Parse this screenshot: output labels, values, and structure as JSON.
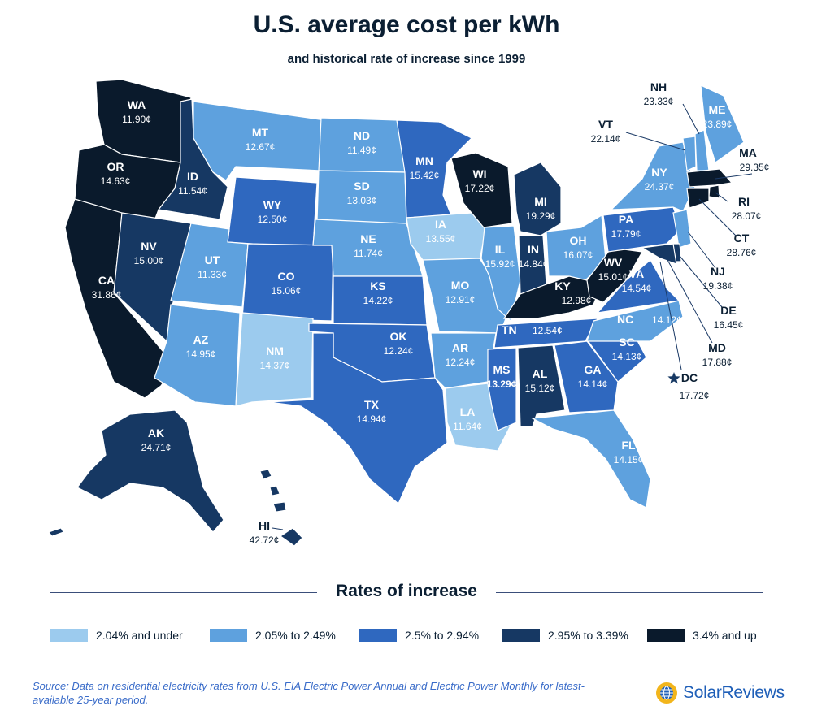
{
  "title": "U.S. average cost per kWh",
  "subtitle": "and historical rate of increase since 1999",
  "colors": {
    "c1": "#9ccbee",
    "c2": "#5ea1de",
    "c3": "#2f68bf",
    "c4": "#163863",
    "c5": "#0a1a2c",
    "text_dark": "#0b1f33"
  },
  "states": [
    {
      "abbr": "WA",
      "value": "11.90¢",
      "cls": 5
    },
    {
      "abbr": "OR",
      "value": "14.63¢",
      "cls": 5
    },
    {
      "abbr": "CA",
      "value": "31.86¢",
      "cls": 5
    },
    {
      "abbr": "ID",
      "value": "11.54¢",
      "cls": 4
    },
    {
      "abbr": "NV",
      "value": "15.00¢",
      "cls": 4
    },
    {
      "abbr": "MT",
      "value": "12.67¢",
      "cls": 2
    },
    {
      "abbr": "WY",
      "value": "12.50¢",
      "cls": 3
    },
    {
      "abbr": "UT",
      "value": "11.33¢",
      "cls": 2
    },
    {
      "abbr": "AZ",
      "value": "14.95¢",
      "cls": 2
    },
    {
      "abbr": "CO",
      "value": "15.06¢",
      "cls": 3
    },
    {
      "abbr": "NM",
      "value": "14.37¢",
      "cls": 1
    },
    {
      "abbr": "ND",
      "value": "11.49¢",
      "cls": 2
    },
    {
      "abbr": "SD",
      "value": "13.03¢",
      "cls": 2
    },
    {
      "abbr": "NE",
      "value": "11.74¢",
      "cls": 2
    },
    {
      "abbr": "KS",
      "value": "14.22¢",
      "cls": 3
    },
    {
      "abbr": "OK",
      "value": "12.24¢",
      "cls": 3
    },
    {
      "abbr": "TX",
      "value": "14.94¢",
      "cls": 3
    },
    {
      "abbr": "MN",
      "value": "15.42¢",
      "cls": 3
    },
    {
      "abbr": "IA",
      "value": "13.55¢",
      "cls": 1
    },
    {
      "abbr": "MO",
      "value": "12.91¢",
      "cls": 2
    },
    {
      "abbr": "AR",
      "value": "12.24¢",
      "cls": 2
    },
    {
      "abbr": "LA",
      "value": "11.64¢",
      "cls": 1
    },
    {
      "abbr": "WI",
      "value": "17.22¢",
      "cls": 5
    },
    {
      "abbr": "IL",
      "value": "15.92¢",
      "cls": 2
    },
    {
      "abbr": "MI",
      "value": "19.29¢",
      "cls": 4
    },
    {
      "abbr": "IN",
      "value": "14.84¢",
      "cls": 4
    },
    {
      "abbr": "OH",
      "value": "16.07¢",
      "cls": 2
    },
    {
      "abbr": "KY",
      "value": "12.98¢",
      "cls": 5
    },
    {
      "abbr": "TN",
      "value": "12.54¢",
      "cls": 3
    },
    {
      "abbr": "MS",
      "value": "13.29¢",
      "cls": 3
    },
    {
      "abbr": "AL",
      "value": "15.12¢",
      "cls": 4
    },
    {
      "abbr": "GA",
      "value": "14.14¢",
      "cls": 3
    },
    {
      "abbr": "FL",
      "value": "14.15¢",
      "cls": 2
    },
    {
      "abbr": "SC",
      "value": "14.13¢",
      "cls": 3
    },
    {
      "abbr": "NC",
      "value": "14.12¢",
      "cls": 2
    },
    {
      "abbr": "VA",
      "value": "14.54¢",
      "cls": 3
    },
    {
      "abbr": "WV",
      "value": "15.01¢",
      "cls": 5
    },
    {
      "abbr": "PA",
      "value": "17.79¢",
      "cls": 3
    },
    {
      "abbr": "NY",
      "value": "24.37¢",
      "cls": 2
    },
    {
      "abbr": "VT",
      "value": "22.14¢",
      "cls": 2
    },
    {
      "abbr": "NH",
      "value": "23.33¢",
      "cls": 2
    },
    {
      "abbr": "ME",
      "value": "23.89¢",
      "cls": 2
    },
    {
      "abbr": "MA",
      "value": "29.35¢",
      "cls": 5
    },
    {
      "abbr": "RI",
      "value": "28.07¢",
      "cls": 5
    },
    {
      "abbr": "CT",
      "value": "28.76¢",
      "cls": 5
    },
    {
      "abbr": "NJ",
      "value": "19.38¢",
      "cls": 2
    },
    {
      "abbr": "DE",
      "value": "16.45¢",
      "cls": 4
    },
    {
      "abbr": "MD",
      "value": "17.88¢",
      "cls": 4
    },
    {
      "abbr": "DC",
      "value": "17.72¢",
      "cls": 4
    },
    {
      "abbr": "AK",
      "value": "24.71¢",
      "cls": 4
    },
    {
      "abbr": "HI",
      "value": "42.72¢",
      "cls": 4
    }
  ],
  "legend": {
    "title": "Rates of increase",
    "items": [
      {
        "label": "2.04% and under",
        "cls": 1
      },
      {
        "label": "2.05% to 2.49%",
        "cls": 2
      },
      {
        "label": "2.5% to 2.94%",
        "cls": 3
      },
      {
        "label": "2.95% to 3.39%",
        "cls": 4
      },
      {
        "label": "3.4% and up",
        "cls": 5
      }
    ]
  },
  "source": "Source: Data on residential electricity rates from U.S. EIA Electric Power Annual and Electric Power Monthly for latest-available 25-year period.",
  "brand": "SolarReviews",
  "brand_icon": "sun-globe-icon"
}
